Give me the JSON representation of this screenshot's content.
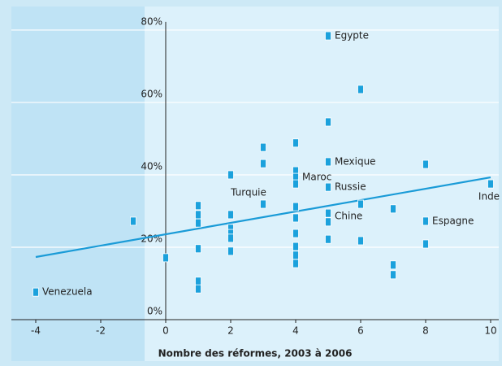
{
  "chart_data": {
    "type": "scatter",
    "x_label": "Nombre des réformes, 2003 à 2006",
    "x": [
      5,
      6,
      5,
      4,
      3,
      3,
      5,
      8,
      2,
      4,
      4,
      4,
      5,
      10,
      3,
      6,
      1,
      4,
      7,
      1,
      2,
      5,
      4,
      -1,
      1,
      5,
      8,
      2,
      2,
      2,
      4,
      5,
      6,
      8,
      4,
      1,
      2,
      4,
      0,
      4,
      7,
      7,
      1,
      1,
      -4
    ],
    "values": [
      78.4,
      63.6,
      54.6,
      48.8,
      47.6,
      43.1,
      43.6,
      42.9,
      40,
      41.1,
      39.3,
      37.5,
      36.6,
      37.5,
      31.9,
      31.9,
      31.5,
      31.2,
      30.6,
      29,
      29,
      29.4,
      28.1,
      27.2,
      26.7,
      27,
      27.2,
      25.2,
      23.8,
      22.5,
      23.8,
      22.2,
      21.8,
      20.9,
      20.2,
      19.6,
      18.9,
      17.8,
      17.1,
      15.5,
      15.1,
      12.4,
      10.6,
      8.5,
      7.6
    ],
    "labels": [
      "Egypte",
      null,
      null,
      null,
      null,
      null,
      "Mexique",
      null,
      null,
      null,
      "Maroc",
      null,
      "Russie",
      "Inde",
      "Turquie",
      null,
      null,
      null,
      null,
      null,
      null,
      "Chine",
      null,
      null,
      null,
      null,
      "Espagne",
      null,
      null,
      null,
      null,
      null,
      null,
      null,
      null,
      null,
      null,
      null,
      null,
      null,
      null,
      null,
      null,
      null,
      "Venezuela"
    ],
    "color": "#1ba1dc",
    "trend": {
      "x": [
        -4,
        10
      ],
      "values": [
        17.3,
        39.3
      ],
      "color": "#1a9bd7"
    },
    "xlim": [
      -4.75,
      10.25
    ],
    "ylim": [
      0,
      86.5
    ],
    "xticks": [
      -4,
      -2,
      0,
      2,
      4,
      6,
      8,
      10
    ],
    "yticks": [
      {
        "value": 0,
        "label": "0%"
      },
      {
        "value": 20,
        "label": "20%"
      },
      {
        "value": 40,
        "label": "40%"
      },
      {
        "value": 60,
        "label": "60%"
      },
      {
        "value": 80,
        "label": "80%"
      }
    ],
    "grid": true
  }
}
